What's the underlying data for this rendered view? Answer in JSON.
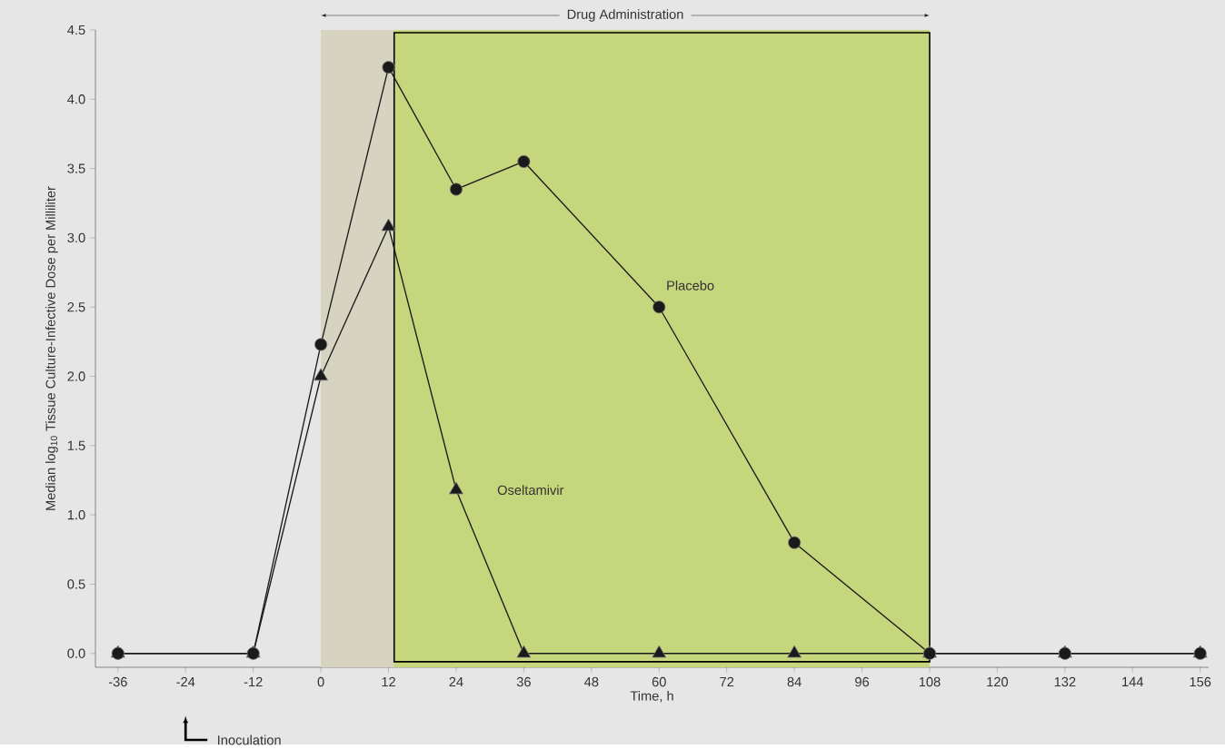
{
  "chart_data": {
    "type": "line",
    "xlabel": "Time, h",
    "ylabel": "Median log$_{10}$ Tissue Culture-Infective Dose per Milliliter",
    "x": [
      -36,
      -12,
      0,
      12,
      24,
      36,
      60,
      84,
      108,
      132,
      156
    ],
    "series": [
      {
        "name": "Oseltamivir",
        "color": "#1a1a1a",
        "marker": "triangle",
        "values": [
          0,
          0,
          2.0,
          3.08,
          1.18,
          0,
          0,
          0,
          0,
          0,
          0
        ]
      },
      {
        "name": "Placebo",
        "color": "#1a1a1a",
        "marker": "circle",
        "values": [
          0,
          0,
          2.23,
          4.23,
          3.35,
          3.55,
          2.5,
          0.8,
          0,
          0,
          0
        ]
      }
    ],
    "xlim": [
      -40,
      157.5
    ],
    "ylim": [
      -0.1,
      4.5
    ],
    "xticks": [
      -36,
      -24,
      -12,
      0,
      12,
      24,
      36,
      48,
      60,
      72,
      84,
      96,
      108,
      120,
      132,
      144,
      156
    ],
    "yticks": [
      {
        "value": 0,
        "label": "0.0"
      },
      {
        "value": 0.5,
        "label": "0.5"
      },
      {
        "value": 1,
        "label": "1.0"
      },
      {
        "value": 1.5,
        "label": "1.5"
      },
      {
        "value": 2,
        "label": "2.0"
      },
      {
        "value": 2.5,
        "label": "2.5"
      },
      {
        "value": 3,
        "label": "3.0"
      },
      {
        "value": 3.5,
        "label": "3.5"
      },
      {
        "value": 4,
        "label": "4.0"
      },
      {
        "value": 4.5,
        "label": "4.5"
      }
    ],
    "bands": [
      {
        "axis": "x",
        "from": 0,
        "to": 108,
        "label": "Drug Administration",
        "color": "#d6d4c0"
      },
      {
        "axis": "x",
        "from": 13,
        "to": 108,
        "color": "#c6d67c"
      }
    ],
    "annotations": [
      "Inoculation"
    ],
    "grid": false,
    "line_style": "solid"
  }
}
